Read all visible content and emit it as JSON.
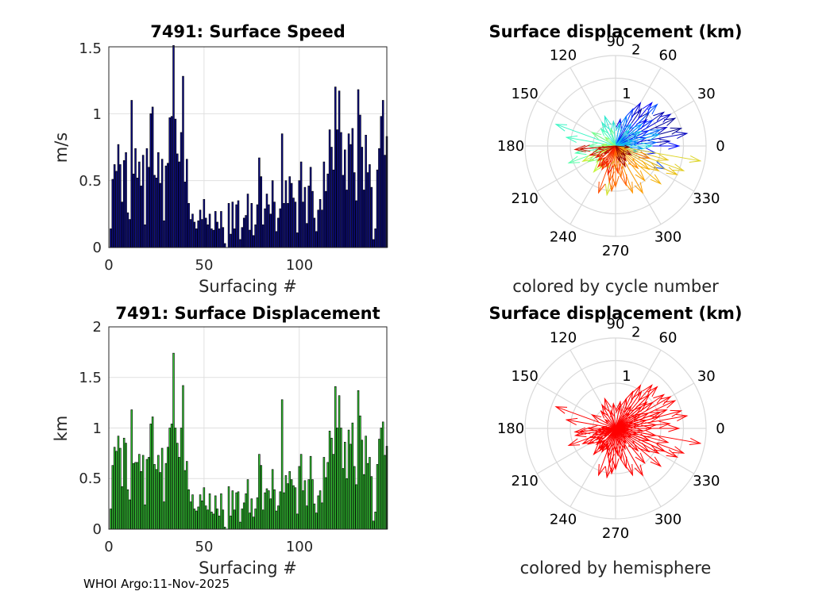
{
  "footer": "WHOI Argo:11-Nov-2025",
  "chart_data": [
    {
      "type": "bar",
      "title": "7491: Surface Speed",
      "xlabel": "Surfacing #",
      "ylabel": "m/s",
      "xlim": [
        0,
        146
      ],
      "ylim": [
        0,
        1.5
      ],
      "xticks": [
        "0",
        "50",
        "100"
      ],
      "yticks": [
        "0",
        "0.5",
        "1",
        "1.5"
      ],
      "bar_color": "#0d0d8c",
      "values": [
        0.14,
        0.51,
        0.62,
        0.57,
        0.77,
        0.62,
        0.34,
        0.65,
        0.71,
        0.26,
        0.21,
        1.1,
        0.55,
        0.74,
        0.52,
        0.64,
        0.46,
        0.69,
        0.17,
        0.74,
        0.6,
        1.0,
        1.05,
        0.54,
        0.52,
        0.71,
        0.48,
        0.66,
        0.2,
        0.61,
        0.63,
        0.97,
        0.98,
        1.51,
        0.96,
        0.7,
        0.64,
        0.86,
        1.28,
        0.49,
        0.66,
        0.33,
        0.21,
        0.25,
        0.19,
        0.14,
        0.2,
        0.28,
        0.21,
        0.36,
        0.22,
        0.17,
        0.25,
        0.14,
        0.13,
        0.27,
        0.19,
        0.14,
        0.27,
        0.15,
        0.03,
        0.0,
        0.33,
        0.1,
        0.34,
        0.14,
        0.32,
        0.35,
        0.06,
        0.15,
        0.22,
        0.24,
        0.4,
        0.13,
        0.33,
        0.09,
        0.17,
        0.32,
        0.67,
        0.53,
        0.17,
        0.29,
        0.4,
        0.32,
        0.25,
        0.5,
        0.34,
        0.12,
        0.22,
        0.29,
        0.85,
        0.33,
        0.5,
        0.33,
        0.53,
        0.48,
        0.37,
        0.34,
        0.11,
        0.5,
        0.64,
        0.34,
        0.45,
        0.18,
        0.46,
        0.6,
        0.42,
        0.22,
        0.12,
        0.28,
        0.36,
        0.28,
        0.64,
        0.42,
        0.55,
        0.88,
        0.75,
        0.58,
        1.2,
        0.88,
        1.17,
        0.86,
        0.54,
        0.73,
        0.43,
        0.85,
        0.77,
        0.89,
        0.56,
        0.35,
        1.18,
        0.99,
        0.75,
        0.43,
        0.84,
        0.56,
        0.62,
        0.45,
        0.06,
        0.14,
        0.58,
        0.74,
        0.98,
        1.1,
        0.69,
        0.83
      ]
    },
    {
      "type": "bar",
      "title": "7491: Surface Displacement",
      "xlabel": "Surfacing #",
      "ylabel": "km",
      "xlim": [
        0,
        146
      ],
      "ylim": [
        0,
        2
      ],
      "xticks": [
        "0",
        "50",
        "100"
      ],
      "yticks": [
        "0",
        "0.5",
        "1",
        "1.5",
        "2"
      ],
      "bar_color": "#33cc33",
      "values": [
        0.2,
        0.63,
        0.81,
        0.77,
        0.92,
        0.8,
        0.42,
        0.9,
        0.85,
        0.39,
        0.29,
        1.18,
        0.65,
        0.66,
        0.66,
        0.74,
        0.57,
        0.73,
        0.24,
        0.69,
        0.71,
        1.04,
        1.11,
        0.64,
        0.59,
        0.73,
        0.56,
        0.8,
        0.27,
        0.65,
        0.81,
        1.0,
        1.04,
        1.74,
        1.0,
        0.85,
        0.71,
        1.0,
        1.42,
        0.58,
        0.67,
        0.39,
        0.27,
        0.34,
        0.2,
        0.18,
        0.22,
        0.34,
        0.28,
        0.41,
        0.23,
        0.19,
        0.35,
        0.17,
        0.15,
        0.33,
        0.2,
        0.13,
        0.35,
        0.19,
        0.02,
        0.0,
        0.42,
        0.13,
        0.38,
        0.19,
        0.36,
        0.37,
        0.07,
        0.2,
        0.26,
        0.35,
        0.49,
        0.16,
        0.3,
        0.12,
        0.2,
        0.31,
        0.74,
        0.63,
        0.19,
        0.36,
        0.4,
        0.38,
        0.3,
        0.59,
        0.39,
        0.18,
        0.23,
        0.37,
        1.28,
        0.36,
        0.53,
        0.45,
        0.57,
        0.49,
        0.43,
        0.41,
        0.15,
        0.62,
        0.74,
        0.38,
        0.48,
        0.23,
        0.49,
        0.72,
        0.49,
        0.25,
        0.16,
        0.33,
        0.38,
        0.26,
        0.71,
        0.51,
        0.66,
        0.97,
        0.9,
        0.74,
        1.41,
        1.0,
        1.32,
        1.0,
        0.6,
        0.86,
        0.5,
        0.98,
        0.84,
        1.05,
        0.62,
        0.44,
        1.37,
        1.12,
        0.88,
        0.54,
        0.92,
        0.65,
        0.71,
        0.52,
        0.08,
        0.17,
        0.64,
        0.89,
        1.0,
        1.06,
        0.73,
        0.82
      ]
    },
    {
      "type": "polar",
      "title": "Surface displacement (km)",
      "caption": "colored by cycle number",
      "rmax": 2,
      "rticks": [
        "1",
        "2"
      ],
      "theta_ticks": [
        "0",
        "30",
        "60",
        "90",
        "120",
        "150",
        "180",
        "210",
        "240",
        "270",
        "300",
        "330"
      ],
      "colormap": [
        "#00008f",
        "#0000ff",
        "#00a0ff",
        "#40ffbf",
        "#bfff40",
        "#ffa000",
        "#ff2000",
        "#800000"
      ],
      "vectors": [
        [
          15,
          1.5
        ],
        [
          25,
          1.45
        ],
        [
          45,
          1.05
        ],
        [
          55,
          1.0
        ],
        [
          35,
          1.3
        ],
        [
          5,
          1.2
        ],
        [
          10,
          1.6
        ],
        [
          20,
          1.2
        ],
        [
          30,
          1.4
        ],
        [
          -20,
          0.8
        ],
        [
          60,
          1.1
        ],
        [
          80,
          0.6
        ],
        [
          40,
          0.9
        ],
        [
          15,
          0.7
        ],
        [
          50,
          1.25
        ],
        [
          0,
          1.4
        ],
        [
          -10,
          0.9
        ],
        [
          25,
          0.8
        ],
        [
          35,
          1.0
        ],
        [
          65,
          0.9
        ],
        [
          -25,
          1.2
        ],
        [
          45,
          1.3
        ],
        [
          30,
          0.55
        ],
        [
          5,
          0.9
        ],
        [
          20,
          1.05
        ],
        [
          70,
          0.7
        ],
        [
          10,
          0.5
        ],
        [
          -5,
          0.6
        ],
        [
          40,
          0.75
        ],
        [
          55,
          0.6
        ],
        [
          15,
          1.0
        ],
        [
          20,
          0.4
        ],
        [
          -15,
          0.5
        ],
        [
          80,
          0.5
        ],
        [
          30,
          0.65
        ],
        [
          10,
          0.35
        ],
        [
          50,
          0.45
        ],
        [
          0,
          0.8
        ],
        [
          95,
          0.55
        ],
        [
          110,
          0.7
        ],
        [
          120,
          0.6
        ],
        [
          160,
          1.4
        ],
        [
          170,
          1.1
        ],
        [
          130,
          0.5
        ],
        [
          190,
          0.9
        ],
        [
          200,
          1.1
        ],
        [
          180,
          0.6
        ],
        [
          105,
          0.4
        ],
        [
          150,
          0.6
        ],
        [
          210,
          0.7
        ],
        [
          195,
          0.5
        ],
        [
          140,
          0.3
        ],
        [
          185,
          0.4
        ],
        [
          220,
          0.55
        ],
        [
          175,
          0.3
        ],
        [
          200,
          0.35
        ],
        [
          210,
          0.5
        ],
        [
          250,
          0.55
        ],
        [
          230,
          0.75
        ],
        [
          205,
          0.8
        ],
        [
          235,
          0.6
        ],
        [
          260,
          1.1
        ],
        [
          270,
          0.5
        ],
        [
          -10,
          1.9
        ],
        [
          -20,
          1.6
        ],
        [
          -15,
          1.2
        ],
        [
          -25,
          1.5
        ],
        [
          -30,
          1.1
        ],
        [
          -40,
          1.3
        ],
        [
          -35,
          0.9
        ],
        [
          -50,
          1.0
        ],
        [
          -60,
          1.2
        ],
        [
          -70,
          1.1
        ],
        [
          -45,
          0.7
        ],
        [
          -20,
          0.8
        ],
        [
          -80,
          0.7
        ],
        [
          -90,
          0.9
        ],
        [
          -95,
          1.0
        ],
        [
          -75,
          0.9
        ],
        [
          -100,
          0.8
        ],
        [
          -110,
          1.1
        ],
        [
          -85,
          0.6
        ],
        [
          -120,
          0.6
        ],
        [
          -130,
          0.6
        ],
        [
          -115,
          0.5
        ],
        [
          -140,
          0.5
        ],
        [
          -105,
          0.65
        ],
        [
          -125,
          0.55
        ],
        [
          -150,
          0.5
        ],
        [
          -160,
          0.6
        ],
        [
          -175,
          0.9
        ],
        [
          185,
          0.8
        ],
        [
          -170,
          0.4
        ],
        [
          -145,
          0.3
        ],
        [
          -65,
          0.5
        ],
        [
          -55,
          0.4
        ],
        [
          -30,
          0.4
        ],
        [
          -45,
          0.3
        ],
        [
          -75,
          0.35
        ],
        [
          -5,
          0.3
        ]
      ]
    },
    {
      "type": "polar",
      "title": "Surface displacement (km)",
      "caption": "colored by hemisphere",
      "rmax": 2,
      "rticks": [
        "1",
        "2"
      ],
      "theta_ticks": [
        "0",
        "30",
        "60",
        "90",
        "120",
        "150",
        "180",
        "210",
        "240",
        "270",
        "300",
        "330"
      ],
      "color": "#ff0000",
      "vectors": [
        [
          15,
          1.5
        ],
        [
          25,
          1.45
        ],
        [
          45,
          1.05
        ],
        [
          55,
          1.0
        ],
        [
          35,
          1.3
        ],
        [
          5,
          1.2
        ],
        [
          10,
          1.6
        ],
        [
          20,
          1.2
        ],
        [
          30,
          1.4
        ],
        [
          -20,
          0.8
        ],
        [
          60,
          1.1
        ],
        [
          80,
          0.6
        ],
        [
          40,
          0.9
        ],
        [
          15,
          0.7
        ],
        [
          50,
          1.25
        ],
        [
          0,
          1.4
        ],
        [
          -10,
          0.9
        ],
        [
          25,
          0.8
        ],
        [
          35,
          1.0
        ],
        [
          65,
          0.9
        ],
        [
          -25,
          1.2
        ],
        [
          45,
          1.3
        ],
        [
          30,
          0.55
        ],
        [
          5,
          0.9
        ],
        [
          20,
          1.05
        ],
        [
          70,
          0.7
        ],
        [
          10,
          0.5
        ],
        [
          -5,
          0.6
        ],
        [
          40,
          0.75
        ],
        [
          55,
          0.6
        ],
        [
          15,
          1.0
        ],
        [
          20,
          0.4
        ],
        [
          -15,
          0.5
        ],
        [
          80,
          0.5
        ],
        [
          30,
          0.65
        ],
        [
          10,
          0.35
        ],
        [
          50,
          0.45
        ],
        [
          0,
          0.8
        ],
        [
          95,
          0.55
        ],
        [
          110,
          0.7
        ],
        [
          120,
          0.6
        ],
        [
          160,
          1.4
        ],
        [
          170,
          1.1
        ],
        [
          130,
          0.5
        ],
        [
          190,
          0.9
        ],
        [
          200,
          1.1
        ],
        [
          180,
          0.6
        ],
        [
          105,
          0.4
        ],
        [
          150,
          0.6
        ],
        [
          210,
          0.7
        ],
        [
          195,
          0.5
        ],
        [
          140,
          0.3
        ],
        [
          185,
          0.4
        ],
        [
          220,
          0.55
        ],
        [
          175,
          0.3
        ],
        [
          200,
          0.35
        ],
        [
          210,
          0.5
        ],
        [
          250,
          0.55
        ],
        [
          230,
          0.75
        ],
        [
          205,
          0.8
        ],
        [
          235,
          0.6
        ],
        [
          260,
          1.1
        ],
        [
          270,
          0.5
        ],
        [
          -10,
          1.9
        ],
        [
          -20,
          1.6
        ],
        [
          -15,
          1.2
        ],
        [
          -25,
          1.5
        ],
        [
          -30,
          1.1
        ],
        [
          -40,
          1.3
        ],
        [
          -35,
          0.9
        ],
        [
          -50,
          1.0
        ],
        [
          -60,
          1.2
        ],
        [
          -70,
          1.1
        ],
        [
          -45,
          0.7
        ],
        [
          -20,
          0.8
        ],
        [
          -80,
          0.7
        ],
        [
          -90,
          0.9
        ],
        [
          -95,
          1.0
        ],
        [
          -75,
          0.9
        ],
        [
          -100,
          0.8
        ],
        [
          -110,
          1.1
        ],
        [
          -85,
          0.6
        ],
        [
          -120,
          0.6
        ],
        [
          -130,
          0.6
        ],
        [
          -115,
          0.5
        ],
        [
          -140,
          0.5
        ],
        [
          -105,
          0.65
        ],
        [
          -125,
          0.55
        ],
        [
          -150,
          0.5
        ],
        [
          -160,
          0.6
        ],
        [
          -175,
          0.9
        ],
        [
          185,
          0.8
        ],
        [
          -170,
          0.4
        ],
        [
          -145,
          0.3
        ],
        [
          -65,
          0.5
        ],
        [
          -55,
          0.4
        ],
        [
          -30,
          0.4
        ],
        [
          -45,
          0.3
        ],
        [
          -75,
          0.35
        ],
        [
          -5,
          0.3
        ]
      ]
    }
  ]
}
